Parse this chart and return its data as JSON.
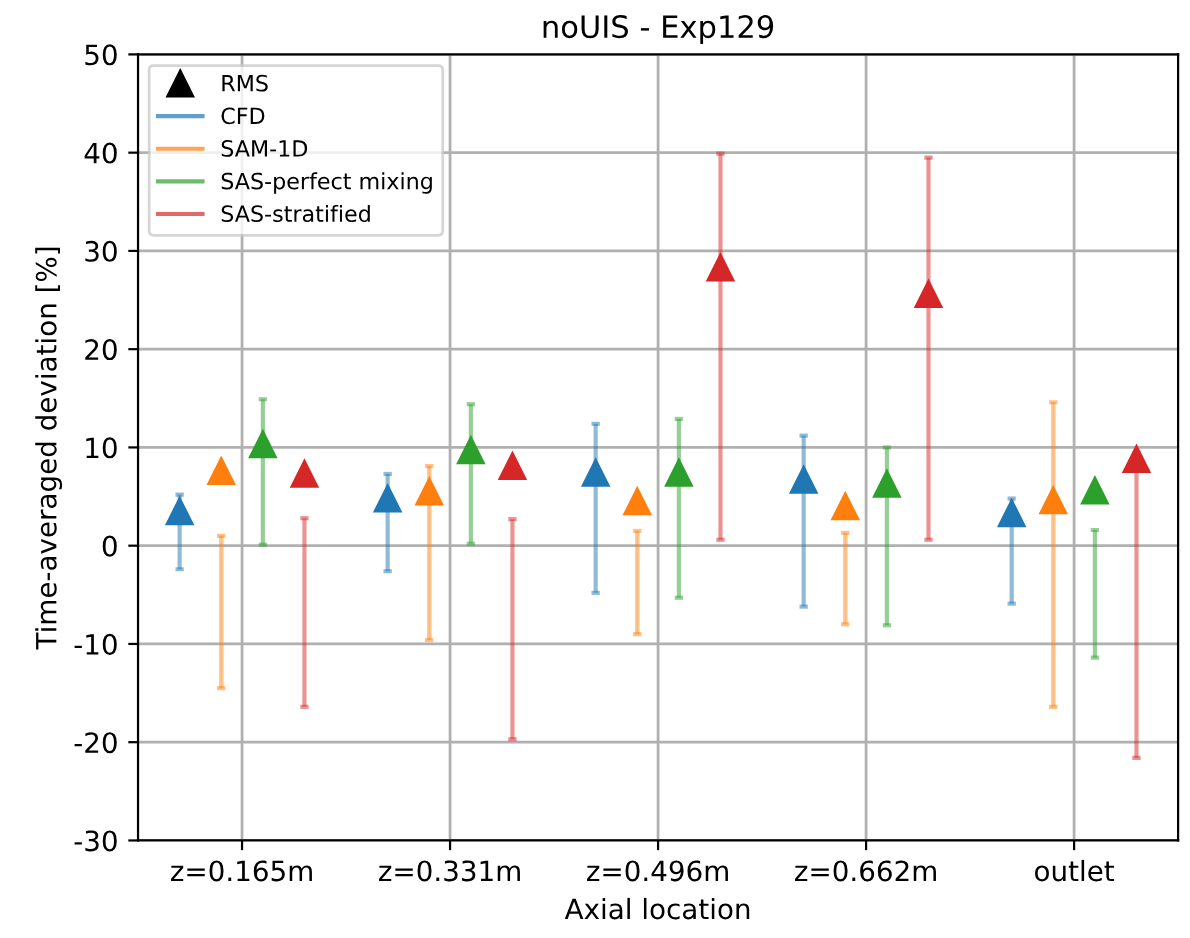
{
  "chart_data": {
    "type": "scatter",
    "title": "noUIS - Exp129",
    "xlabel": "Axial location",
    "ylabel": "Time-averaged deviation [%]",
    "categories": [
      "z=0.165m",
      "z=0.331m",
      "z=0.496m",
      "z=0.662m",
      "outlet"
    ],
    "series": [
      {
        "name": "RMS",
        "color": "#000000",
        "values": [
          null,
          null,
          null,
          null,
          null
        ]
      },
      {
        "name": "CFD",
        "color": "#1f77b4",
        "values": [
          3.5,
          4.8,
          7.4,
          6.7,
          3.3
        ],
        "errors": [
          [
            -2.4,
            5.2
          ],
          [
            -2.6,
            7.3
          ],
          [
            -4.8,
            12.4
          ],
          [
            -6.2,
            11.2
          ],
          [
            -5.9,
            4.8
          ]
        ]
      },
      {
        "name": "SAM-1D",
        "color": "#ff7f0e",
        "values": [
          7.6,
          5.5,
          4.5,
          4.0,
          4.6
        ],
        "errors": [
          [
            -14.5,
            1.0
          ],
          [
            -9.6,
            8.1
          ],
          [
            -9.0,
            1.5
          ],
          [
            -8.0,
            1.3
          ],
          [
            -16.4,
            14.6
          ]
        ]
      },
      {
        "name": "SAS-perfect mixing",
        "color": "#2ca02c",
        "values": [
          10.3,
          9.7,
          7.4,
          6.3,
          5.6
        ],
        "errors": [
          [
            0.1,
            14.9
          ],
          [
            0.2,
            14.4
          ],
          [
            -5.3,
            12.9
          ],
          [
            -8.1,
            10.0
          ],
          [
            -11.4,
            1.6
          ]
        ]
      },
      {
        "name": "SAS-stratified",
        "color": "#d62728",
        "values": [
          7.3,
          8.1,
          28.3,
          25.6,
          8.8
        ],
        "errors": [
          [
            -16.4,
            2.8
          ],
          [
            -19.7,
            2.7
          ],
          [
            0.6,
            39.9
          ],
          [
            0.6,
            39.5
          ],
          [
            -21.6,
            9.4
          ]
        ]
      }
    ],
    "ylim": [
      -30,
      50
    ],
    "yticks": [
      -30,
      -20,
      -10,
      0,
      10,
      20,
      30,
      40,
      50
    ],
    "grid": true,
    "legend": "top left",
    "marker": "triangle"
  }
}
